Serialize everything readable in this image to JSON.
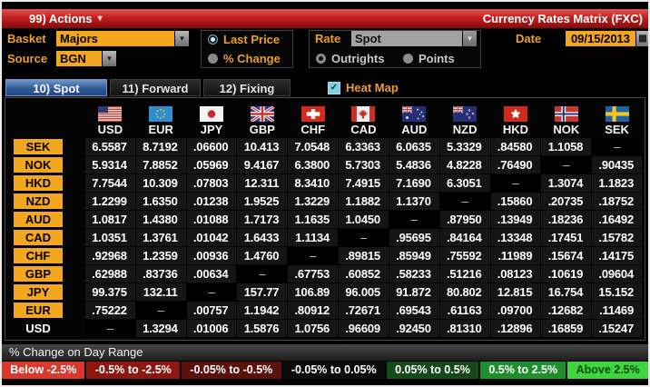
{
  "titlebar": {
    "actions_label": "99) Actions",
    "title": "Currency Rates Matrix (FXC)"
  },
  "controls": {
    "basket_label": "Basket",
    "basket_value": "Majors",
    "source_label": "Source",
    "source_value": "BGN",
    "price_mode": {
      "options": [
        "Last Price",
        "% Change"
      ],
      "selected": "Last Price"
    },
    "rate_label": "Rate",
    "rate_value": "Spot",
    "rate_mode": {
      "options": [
        "Outrights",
        "Points"
      ],
      "selected": "Outrights"
    },
    "date_label": "Date",
    "date_value": "09/15/2013"
  },
  "tabs": [
    {
      "label": "10) Spot",
      "selected": true
    },
    {
      "label": "11) Forward",
      "selected": false
    },
    {
      "label": "12) Fixing",
      "selected": false
    }
  ],
  "heatmap_toggle": {
    "label": "Heat Map",
    "checked": true,
    "check_glyph": "✓"
  },
  "matrix": {
    "columns": [
      "USD",
      "EUR",
      "JPY",
      "GBP",
      "CHF",
      "CAD",
      "AUD",
      "NZD",
      "HKD",
      "NOK",
      "SEK"
    ],
    "rows": [
      {
        "label": "SEK",
        "values": [
          "6.5587",
          "8.7192",
          ".06600",
          "10.413",
          "7.0548",
          "6.3363",
          "6.0635",
          "5.3329",
          ".84580",
          "1.1058",
          "–"
        ]
      },
      {
        "label": "NOK",
        "values": [
          "5.9314",
          "7.8852",
          ".05969",
          "9.4167",
          "6.3800",
          "5.7303",
          "5.4836",
          "4.8228",
          ".76490",
          "–",
          ".90435"
        ]
      },
      {
        "label": "HKD",
        "values": [
          "7.7544",
          "10.309",
          ".07803",
          "12.311",
          "8.3410",
          "7.4915",
          "7.1690",
          "6.3051",
          "–",
          "1.3074",
          "1.1823"
        ]
      },
      {
        "label": "NZD",
        "values": [
          "1.2299",
          "1.6350",
          ".01238",
          "1.9525",
          "1.3229",
          "1.1882",
          "1.1370",
          "–",
          ".15860",
          ".20735",
          ".18752"
        ]
      },
      {
        "label": "AUD",
        "values": [
          "1.0817",
          "1.4380",
          ".01088",
          "1.7173",
          "1.1635",
          "1.0450",
          "–",
          ".87950",
          ".13949",
          ".18236",
          ".16492"
        ]
      },
      {
        "label": "CAD",
        "values": [
          "1.0351",
          "1.3761",
          ".01042",
          "1.6433",
          "1.1134",
          "–",
          ".95695",
          ".84164",
          ".13348",
          ".17451",
          ".15782"
        ]
      },
      {
        "label": "CHF",
        "values": [
          ".92968",
          "1.2359",
          ".00936",
          "1.4760",
          "–",
          ".89815",
          ".85949",
          ".75592",
          ".11989",
          ".15674",
          ".14175"
        ]
      },
      {
        "label": "GBP",
        "values": [
          ".62988",
          ".83736",
          ".00634",
          "–",
          ".67753",
          ".60852",
          ".58233",
          ".51216",
          ".08123",
          ".10619",
          ".09604"
        ]
      },
      {
        "label": "JPY",
        "values": [
          "99.375",
          "132.11",
          "–",
          "157.77",
          "106.89",
          "96.005",
          "91.872",
          "80.802",
          "12.815",
          "16.754",
          "15.152"
        ]
      },
      {
        "label": "EUR",
        "values": [
          ".75222",
          "–",
          ".00757",
          "1.1942",
          ".80912",
          ".72671",
          ".69543",
          ".61163",
          ".09700",
          ".12682",
          ".11469"
        ]
      },
      {
        "label": "USD",
        "values": [
          "–",
          "1.3294",
          ".01006",
          "1.5876",
          "1.0756",
          ".96609",
          ".92450",
          ".81310",
          ".12896",
          ".16859",
          ".15247"
        ]
      }
    ]
  },
  "footer": {
    "range_title": "% Change on Day Range",
    "legend": [
      {
        "label": "Below -2.5%",
        "bg": "#d8392c",
        "fg": "#ffffff"
      },
      {
        "label": "-0.5% to -2.5%",
        "bg": "#8f1710",
        "fg": "#ffffff"
      },
      {
        "label": "-0.05% to -0.5%",
        "bg": "#5c120c",
        "fg": "#ffffff"
      },
      {
        "label": "-0.05% to 0.05%",
        "bg": "#0b0b0b",
        "fg": "#ffffff"
      },
      {
        "label": "0.05% to 0.5%",
        "bg": "#16491a",
        "fg": "#ffffff"
      },
      {
        "label": "0.5% to 2.5%",
        "bg": "#1f8f2c",
        "fg": "#ffffff"
      },
      {
        "label": "Above 2.5%",
        "bg": "#3fd53f",
        "fg": "#0b4d0b"
      }
    ]
  },
  "colors": {
    "amber": "#f3a71f",
    "titlebar_red": "#c02020",
    "tab_selected_blue": "#2a5795",
    "cell_bg": "#151515"
  }
}
